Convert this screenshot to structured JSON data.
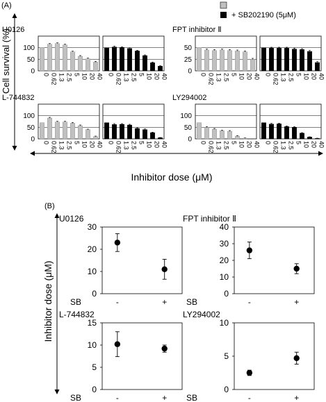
{
  "panel_a_label": "(A)",
  "panel_b_label": "(B)",
  "legend": [
    {
      "label": "",
      "color": "#c0c0c0"
    },
    {
      "label": "+ SB202190 (5μM)",
      "color": "#000000"
    }
  ],
  "a_ylabel": "Cell survival (%)",
  "a_xlabel": "Inhibitor dose (μM)",
  "b_ylabel": "Inhibitor dose (μM)",
  "chart_data": [
    {
      "type": "bar",
      "title": "U0126",
      "categories": [
        "0",
        "0.62",
        "1.3",
        "2.5",
        "5",
        "10",
        "20",
        "40"
      ],
      "ylim": [
        0,
        150
      ],
      "yticks": [
        0,
        50,
        100
      ],
      "series": [
        {
          "values": [
            100,
            115,
            118,
            112,
            82,
            63,
            52,
            38
          ],
          "errors": [
            0,
            3,
            3,
            3,
            3,
            3,
            3,
            3
          ],
          "color": "#c0c0c0"
        },
        {
          "name": "+ SB202190 (5μM)",
          "values": [
            100,
            103,
            101,
            97,
            86,
            66,
            35,
            20
          ],
          "errors": [
            0,
            4,
            3,
            3,
            3,
            3,
            3,
            2
          ],
          "color": "#000000"
        }
      ]
    },
    {
      "type": "bar",
      "title": "FPT inhibitor Ⅱ",
      "categories": [
        "0",
        "0.62",
        "1.3",
        "2.5",
        "5",
        "10",
        "20",
        "40"
      ],
      "ylim": [
        0,
        75
      ],
      "yticks": [
        0,
        25,
        50
      ],
      "series": [
        {
          "values": [
            50,
            45,
            44,
            45,
            44,
            43,
            41,
            25
          ],
          "errors": [
            0,
            2,
            2,
            2,
            2,
            2,
            2,
            2
          ],
          "color": "#c0c0c0"
        },
        {
          "name": "+ SB202190 (5μM)",
          "values": [
            50,
            49,
            49,
            49,
            47,
            46,
            42,
            18
          ],
          "errors": [
            0,
            2,
            2,
            2,
            2,
            2,
            2,
            2
          ],
          "color": "#000000"
        }
      ]
    },
    {
      "type": "bar",
      "title": "L-744832",
      "categories": [
        "0",
        "0.62",
        "1.3",
        "2.5",
        "5",
        "10",
        "20",
        "40"
      ],
      "ylim": [
        0,
        150
      ],
      "yticks": [
        0,
        50,
        100
      ],
      "series": [
        {
          "values": [
            70,
            90,
            73,
            73,
            68,
            57,
            40,
            10
          ],
          "errors": [
            0,
            3,
            3,
            3,
            3,
            3,
            2,
            2
          ],
          "color": "#c0c0c0"
        },
        {
          "name": "+ SB202190 (5μM)",
          "values": [
            70,
            62,
            63,
            60,
            45,
            40,
            27,
            5
          ],
          "errors": [
            0,
            4,
            3,
            3,
            3,
            3,
            2,
            1
          ],
          "color": "#000000"
        }
      ]
    },
    {
      "type": "bar",
      "title": "LY294002",
      "categories": [
        "0",
        "0.62",
        "1.3",
        "2.5",
        "5",
        "10",
        "20",
        "40"
      ],
      "ylim": [
        0,
        150
      ],
      "yticks": [
        0,
        50,
        100
      ],
      "series": [
        {
          "values": [
            70,
            50,
            42,
            35,
            33,
            12,
            3,
            0
          ],
          "errors": [
            0,
            3,
            3,
            3,
            3,
            2,
            1,
            0
          ],
          "color": "#c0c0c0"
        },
        {
          "name": "+ SB202190 (5μM)",
          "values": [
            70,
            64,
            65,
            53,
            50,
            25,
            8,
            2
          ],
          "errors": [
            0,
            3,
            3,
            3,
            3,
            2,
            1,
            1
          ],
          "color": "#000000"
        }
      ]
    },
    {
      "type": "scatter",
      "title": "U0126",
      "xlabel": "SB",
      "categories": [
        "-",
        "+"
      ],
      "ylim": [
        0,
        30
      ],
      "yticks": [
        0,
        10,
        20,
        30
      ],
      "values": [
        23,
        11
      ],
      "errors": [
        4,
        4.5
      ]
    },
    {
      "type": "scatter",
      "title": "FPT inhibitor  Ⅱ",
      "xlabel": "SB",
      "categories": [
        "-",
        "+"
      ],
      "ylim": [
        0,
        40
      ],
      "yticks": [
        0,
        10,
        20,
        30,
        40
      ],
      "values": [
        26,
        15
      ],
      "errors": [
        5,
        3
      ]
    },
    {
      "type": "scatter",
      "title": "L-744832",
      "xlabel": "SB",
      "categories": [
        "-",
        "+"
      ],
      "ylim": [
        0,
        15
      ],
      "yticks": [
        0,
        5,
        10,
        15
      ],
      "values": [
        10.2,
        9.2
      ],
      "errors": [
        2.8,
        0.8
      ]
    },
    {
      "type": "scatter",
      "title": "LY294002",
      "xlabel": "SB",
      "categories": [
        "-",
        "+"
      ],
      "ylim": [
        0,
        10
      ],
      "yticks": [
        0,
        5,
        10
      ],
      "values": [
        2.5,
        4.7
      ],
      "errors": [
        0.4,
        0.9
      ]
    }
  ]
}
